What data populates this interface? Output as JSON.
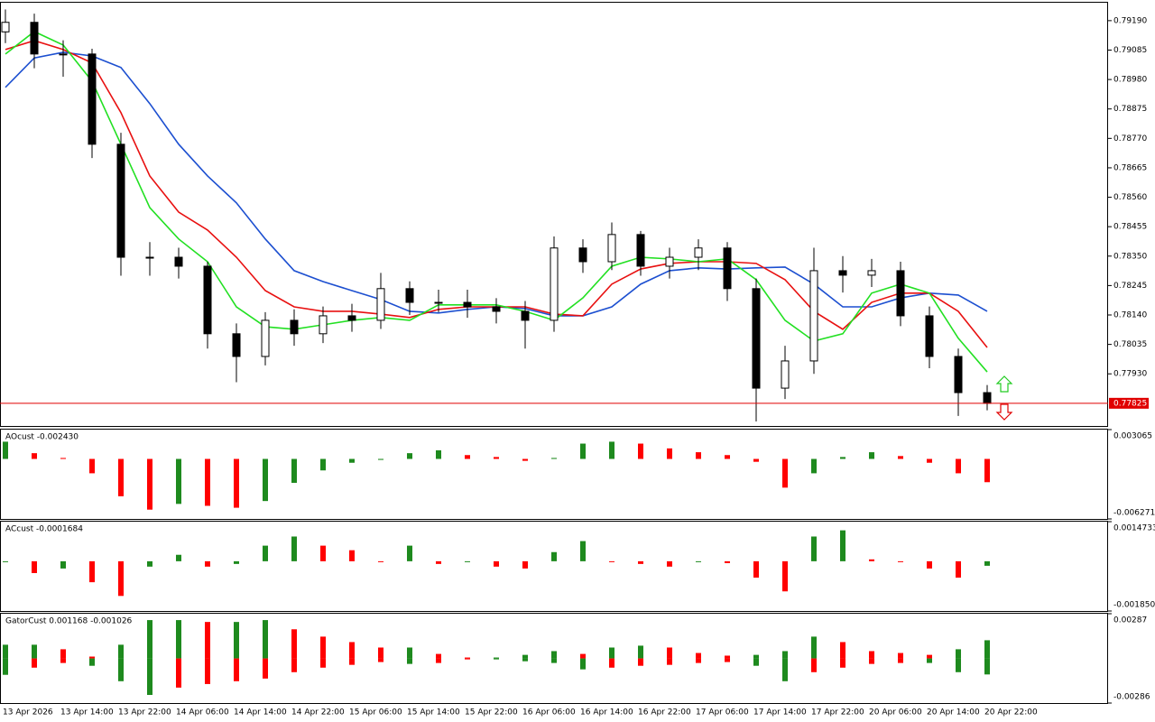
{
  "chart_data": [
    {
      "type": "candlestick",
      "categories": [
        "13 Apr 2026",
        null,
        "13 Apr 14:00",
        null,
        "13 Apr 22:00",
        null,
        "14 Apr 06:00",
        null,
        "14 Apr 14:00",
        null,
        "14 Apr 22:00",
        null,
        "15 Apr 06:00",
        null,
        "15 Apr 14:00",
        null,
        "15 Apr 22:00",
        null,
        "16 Apr 06:00",
        null,
        "16 Apr 14:00",
        null,
        "16 Apr 22:00",
        null,
        "17 Apr 06:00",
        null,
        "17 Apr 14:00",
        null,
        "17 Apr 22:00",
        null,
        "20 Apr 06:00",
        null,
        "20 Apr 14:00",
        null,
        "20 Apr 22:00"
      ],
      "open": [
        0.7915,
        0.79184,
        0.79071,
        0.79071,
        0.78749,
        0.78346,
        0.78346,
        0.78314,
        0.78073,
        0.77992,
        0.78121,
        0.78073,
        0.78137,
        0.78121,
        0.78234,
        0.78185,
        0.78185,
        0.78169,
        0.78153,
        0.78121,
        0.78379,
        0.7833,
        0.78427,
        0.78314,
        0.78346,
        0.78379,
        0.78234,
        0.77879,
        0.77976,
        0.78298,
        0.78282,
        0.78298,
        0.78137,
        0.77992,
        0.77863
      ],
      "high": [
        0.7923,
        0.79215,
        0.7912,
        0.7909,
        0.7879,
        0.784,
        0.7838,
        0.7833,
        0.7811,
        0.7815,
        0.7816,
        0.7817,
        0.7818,
        0.7829,
        0.7826,
        0.7823,
        0.7823,
        0.782,
        0.7819,
        0.7842,
        0.7841,
        0.7847,
        0.7844,
        0.7838,
        0.7841,
        0.784,
        0.7827,
        0.7803,
        0.7838,
        0.7835,
        0.7834,
        0.7833,
        0.7817,
        0.7802,
        0.7789
      ],
      "low": [
        0.7911,
        0.7902,
        0.7899,
        0.787,
        0.7828,
        0.7828,
        0.7827,
        0.7802,
        0.779,
        0.7796,
        0.7803,
        0.7804,
        0.7808,
        0.7809,
        0.7814,
        0.7815,
        0.7813,
        0.7811,
        0.7802,
        0.7808,
        0.7829,
        0.783,
        0.7828,
        0.7827,
        0.783,
        0.7819,
        0.7776,
        0.7784,
        0.7793,
        0.7822,
        0.7824,
        0.781,
        0.7795,
        0.7778,
        0.778
      ],
      "close": [
        0.79184,
        0.79071,
        0.79071,
        0.78749,
        0.78346,
        0.78346,
        0.78314,
        0.78073,
        0.77992,
        0.78121,
        0.78073,
        0.78137,
        0.78121,
        0.78234,
        0.78185,
        0.78185,
        0.78169,
        0.78153,
        0.78121,
        0.78379,
        0.7833,
        0.78427,
        0.78314,
        0.78346,
        0.78379,
        0.78234,
        0.77879,
        0.77976,
        0.78298,
        0.78282,
        0.78298,
        0.78137,
        0.77992,
        0.77863,
        0.77825
      ],
      "up_color": "#ffffff",
      "down_color": "#000000",
      "lines": [
        {
          "color": "#1c4fd0",
          "values": [
            0.78952,
            0.79057,
            0.79077,
            0.79064,
            0.79023,
            0.78894,
            0.78749,
            0.78636,
            0.7854,
            0.78411,
            0.78298,
            0.78259,
            0.78227,
            0.78195,
            0.78153,
            0.78147,
            0.7816,
            0.78169,
            0.78163,
            0.78137,
            0.78137,
            0.78169,
            0.7825,
            0.78298,
            0.78308,
            0.78304,
            0.78308,
            0.78311,
            0.7825,
            0.78169,
            0.78169,
            0.78201,
            0.78218,
            0.78211,
            0.78153
          ]
        },
        {
          "color": "#e81010",
          "values": [
            0.79087,
            0.79119,
            0.79087,
            0.79039,
            0.78862,
            0.78636,
            0.78507,
            0.78443,
            0.78346,
            0.78227,
            0.78169,
            0.78153,
            0.78153,
            0.78143,
            0.78131,
            0.7816,
            0.78169,
            0.78169,
            0.78169,
            0.78143,
            0.78137,
            0.7825,
            0.78304,
            0.78324,
            0.7833,
            0.7833,
            0.78324,
            0.78266,
            0.78153,
            0.78089,
            0.78185,
            0.78218,
            0.78218,
            0.78153,
            0.78024
          ]
        },
        {
          "color": "#22e022",
          "values": [
            0.79071,
            0.79151,
            0.79103,
            0.78974,
            0.78749,
            0.78523,
            0.78411,
            0.7833,
            0.78169,
            0.78098,
            0.78089,
            0.78105,
            0.78121,
            0.78131,
            0.78121,
            0.78176,
            0.78176,
            0.78176,
            0.78153,
            0.78121,
            0.78201,
            0.78314,
            0.78346,
            0.7834,
            0.7833,
            0.7834,
            0.78266,
            0.78121,
            0.78047,
            0.78073,
            0.78218,
            0.7825,
            0.78218,
            0.78057,
            0.77937
          ]
        }
      ],
      "price_line": {
        "value": 0.77825,
        "label": "0.77825",
        "color": "#e00000"
      },
      "ylim": [
        0.77744,
        0.79254
      ],
      "yticks": [
        {
          "value": 0.7919,
          "label": "0.79190"
        },
        {
          "value": 0.79085,
          "label": "0.79085"
        },
        {
          "value": 0.7898,
          "label": "0.78980"
        },
        {
          "value": 0.78875,
          "label": "0.78875"
        },
        {
          "value": 0.7877,
          "label": "0.78770"
        },
        {
          "value": 0.78665,
          "label": "0.78665"
        },
        {
          "value": 0.7856,
          "label": "0.78560"
        },
        {
          "value": 0.78455,
          "label": "0.78455"
        },
        {
          "value": 0.7835,
          "label": "0.78350"
        },
        {
          "value": 0.78245,
          "label": "0.78245"
        },
        {
          "value": 0.7814,
          "label": "0.78140"
        },
        {
          "value": 0.78035,
          "label": "0.78035"
        },
        {
          "value": 0.7793,
          "label": "0.77930"
        }
      ]
    },
    {
      "type": "histogram",
      "label": "AOcust -0.002430",
      "values": [
        0.0018,
        0.0006,
        0.0001,
        -0.0015,
        -0.0039,
        -0.0053,
        -0.0047,
        -0.0049,
        -0.0051,
        -0.0044,
        -0.0025,
        -0.0012,
        -0.0004,
        -0.0001,
        0.0006,
        0.0009,
        0.0004,
        0.0002,
        -0.0002,
        0.0001,
        0.0016,
        0.0018,
        0.0016,
        0.0011,
        0.0007,
        0.0004,
        -0.0003,
        -0.003,
        -0.0015,
        0.0002,
        0.0007,
        0.0003,
        -0.0004,
        -0.0015,
        -0.00243
      ],
      "up_color": "#1e8a1e",
      "down_color": "#ff0000",
      "ylim": [
        -0.006271,
        0.003065
      ],
      "yticks": [
        0.003065,
        -0.006271
      ]
    },
    {
      "type": "histogram",
      "label": "ACcust -0.0001684",
      "values": [
        0,
        -0.00044,
        -0.00027,
        -0.00078,
        -0.00129,
        -0.0002,
        0.00024,
        -0.0002,
        -0.0001,
        0.00058,
        0.00092,
        0.00058,
        0.00041,
        0,
        0.00058,
        -0.0001,
        -3e-05,
        -0.0002,
        -0.00027,
        0.00034,
        0.00075,
        0,
        -0.0001,
        -0.0002,
        -3e-05,
        -7e-05,
        -0.00061,
        -0.00112,
        0.00092,
        0.00115,
        7e-05,
        -3e-05,
        -0.00027,
        -0.00061,
        -0.0001684
      ],
      "up_color": "#1e8a1e",
      "down_color": "#ff0000",
      "ylim": [
        -0.0018504,
        0.0014733
      ],
      "yticks": [
        0.0014733,
        -0.0018504
      ]
    },
    {
      "type": "gator",
      "label": "GatorCust 0.001168 -0.001026",
      "upper": [
        0.00088,
        0.00088,
        0.00059,
        0.00012,
        0.00088,
        0.00246,
        0.00246,
        0.00234,
        0.00234,
        0.00246,
        0.00187,
        0.0014,
        0.00105,
        0.0007,
        0.0007,
        0.00029,
        6e-05,
        6e-05,
        0.00023,
        0.00047,
        0.00029,
        0.0007,
        0.00082,
        0.0007,
        0.00035,
        0.00018,
        0.00023,
        0.00047,
        0.0014,
        0.00105,
        0.00047,
        0.00035,
        0.00023,
        0.00059,
        0.001168
      ],
      "lower": [
        -0.00105,
        -0.00059,
        -0.00029,
        -0.00047,
        -0.00146,
        -0.00234,
        -0.00187,
        -0.00164,
        -0.00146,
        -0.00129,
        -0.00088,
        -0.00059,
        -0.00041,
        -0.00023,
        -0.00035,
        -0.00029,
        -6e-05,
        -6e-05,
        -0.00018,
        -0.00029,
        -0.0007,
        -0.00059,
        -0.00047,
        -0.00041,
        -0.00029,
        -0.00023,
        -0.00047,
        -0.00146,
        -0.00088,
        -0.00059,
        -0.00035,
        -0.00029,
        -0.00029,
        -0.00088,
        -0.001026
      ],
      "up_color": "#1e8a1e",
      "down_color": "#ff0000",
      "ylim": [
        -0.00286,
        0.00287
      ],
      "yticks": [
        0.00287,
        -0.00286
      ]
    }
  ]
}
